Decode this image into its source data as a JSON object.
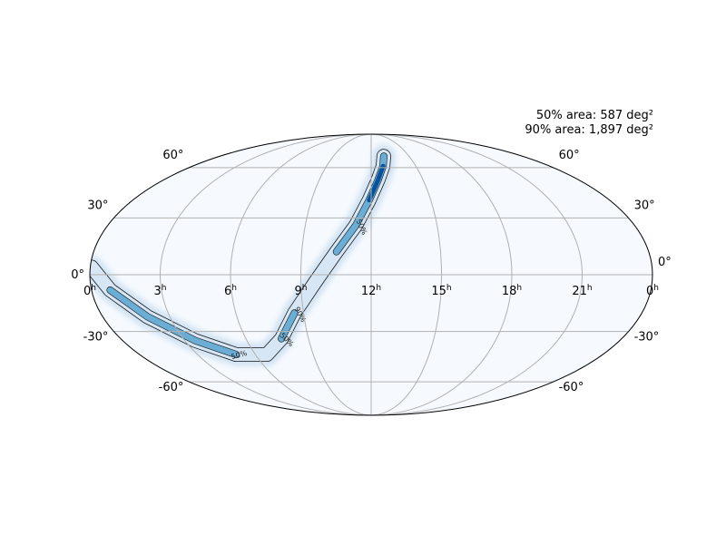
{
  "annotations": {
    "area_50": "50% area: 587 deg²",
    "area_90": "90% area: 1,897 deg²"
  },
  "chart_data": {
    "type": "heatmap",
    "projection": "mollweide",
    "colormap": "Blues",
    "grid": true,
    "ra_ticks": [
      {
        "hour": 0,
        "label": "0",
        "side": "left"
      },
      {
        "hour": 21,
        "label": "21"
      },
      {
        "hour": 18,
        "label": "18"
      },
      {
        "hour": 15,
        "label": "15"
      },
      {
        "hour": 12,
        "label": "12"
      },
      {
        "hour": 9,
        "label": "9"
      },
      {
        "hour": 6,
        "label": "6"
      },
      {
        "hour": 3,
        "label": "3"
      },
      {
        "hour": 0,
        "label": "0",
        "side": "right"
      }
    ],
    "dec_ticks": [
      {
        "deg": 60,
        "label": "60°"
      },
      {
        "deg": 30,
        "label": "30°"
      },
      {
        "deg": 0,
        "label": "0°"
      },
      {
        "deg": -30,
        "label": "-30°"
      },
      {
        "deg": -60,
        "label": "-60°"
      }
    ],
    "contours": [
      {
        "level": 90,
        "label": "90%"
      },
      {
        "level": 50,
        "label": "50%"
      }
    ],
    "localization_ridge": [
      {
        "ra_h": 13.0,
        "dec": 68
      },
      {
        "ra_h": 12.8,
        "dec": 61
      },
      {
        "ra_h": 12.4,
        "dec": 52
      },
      {
        "ra_h": 11.9,
        "dec": 40
      },
      {
        "ra_h": 11.3,
        "dec": 26
      },
      {
        "ra_h": 10.5,
        "dec": 12
      },
      {
        "ra_h": 9.6,
        "dec": -4
      },
      {
        "ra_h": 8.6,
        "dec": -20
      },
      {
        "ra_h": 7.7,
        "dec": -34
      },
      {
        "ra_h": 6.6,
        "dec": -43
      },
      {
        "ra_h": 5.0,
        "dec": -43
      },
      {
        "ra_h": 3.5,
        "dec": -35
      },
      {
        "ra_h": 2.0,
        "dec": -22
      },
      {
        "ra_h": 0.8,
        "dec": -8
      },
      {
        "ra_h": 0.05,
        "dec": 4
      }
    ],
    "peak_region": {
      "ra_h": 12.3,
      "dec": 48
    }
  }
}
